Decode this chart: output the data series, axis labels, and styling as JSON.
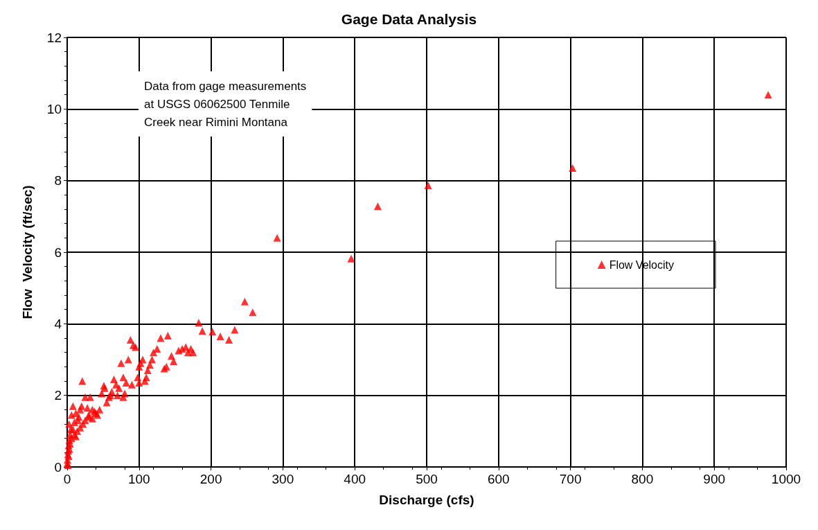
{
  "chart_data": {
    "type": "scatter",
    "title": "Gage Data Analysis",
    "xlabel": "Discharge (cfs)",
    "ylabel": "Flow  Velocity (ft/sec)",
    "annotations": [
      "Data from gage measurements\nat USGS 06062500 Tenmile\nCreek near Rimini Montana"
    ],
    "xlim": [
      0,
      1000
    ],
    "xticks": [
      0,
      100,
      200,
      300,
      400,
      500,
      600,
      700,
      800,
      900,
      1000
    ],
    "ylim": [
      0,
      12
    ],
    "yticks": [
      0,
      2,
      4,
      6,
      8,
      10,
      12
    ],
    "grid": true,
    "legend": "right",
    "marker": "triangle",
    "series": [
      {
        "name": "Flow Velocity",
        "color": "#ff0000",
        "x": [
          975,
          703,
          502,
          432,
          395,
          292,
          247,
          258,
          183,
          188,
          202,
          213,
          225,
          233,
          140,
          145,
          148,
          155,
          160,
          165,
          168,
          172,
          175,
          130,
          135,
          138,
          125,
          120,
          118,
          115,
          112,
          110,
          108,
          105,
          102,
          100,
          98,
          95,
          92,
          88,
          85,
          82,
          90,
          100,
          78,
          75,
          72,
          70,
          78,
          65,
          62,
          58,
          55,
          52,
          51,
          48,
          45,
          40,
          38,
          35,
          32,
          30,
          28,
          25,
          21,
          20,
          18,
          15,
          12,
          10,
          8,
          6,
          5,
          4,
          3,
          2,
          1.5,
          1,
          0.5,
          0.3,
          2.5,
          6,
          10,
          14,
          18,
          22,
          25,
          30,
          8,
          3,
          1,
          2,
          4,
          12,
          16,
          35,
          42,
          60,
          68,
          80
        ],
        "values": [
          10.4,
          8.35,
          7.87,
          7.28,
          5.82,
          6.4,
          4.62,
          4.32,
          4.03,
          3.8,
          3.78,
          3.65,
          3.55,
          3.83,
          3.67,
          3.1,
          2.95,
          3.25,
          3.3,
          3.35,
          3.2,
          3.3,
          3.2,
          3.6,
          2.75,
          2.8,
          3.3,
          3.2,
          3.0,
          2.85,
          2.7,
          2.5,
          2.4,
          3.0,
          2.9,
          2.8,
          2.5,
          3.35,
          3.4,
          3.55,
          3.0,
          2.35,
          2.3,
          2.35,
          2.5,
          2.9,
          2.2,
          2.0,
          1.95,
          2.45,
          2.1,
          1.95,
          1.8,
          2.2,
          2.27,
          2.05,
          1.6,
          1.5,
          1.55,
          1.35,
          1.95,
          1.45,
          1.65,
          1.95,
          2.4,
          1.7,
          1.6,
          1.3,
          1.5,
          1.25,
          1.7,
          1.45,
          1.05,
          0.9,
          0.75,
          0.6,
          0.45,
          0.35,
          0.2,
          0.1,
          1.2,
          0.8,
          0.9,
          1.0,
          1.1,
          1.2,
          1.3,
          1.4,
          1.05,
          0.5,
          0.05,
          0.3,
          0.65,
          0.85,
          1.4,
          1.6,
          1.45,
          2.0,
          2.3,
          2.05
        ]
      }
    ]
  }
}
